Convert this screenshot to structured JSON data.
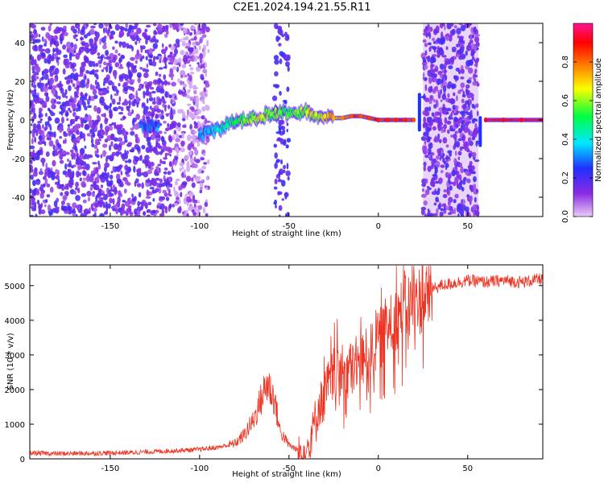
{
  "title": "C2E1.2024.194.21.55.R11",
  "colors": {
    "snr_line": "#ee3322",
    "frame": "#000000",
    "noise_purple": "#7a2ee0",
    "noise_light": "#e3cbf6"
  },
  "chart_data": [
    {
      "type": "heatmap",
      "xlabel": "Height of straight line (km)",
      "ylabel": "Frequency (Hz)",
      "xlim": [
        -195,
        92
      ],
      "ylim": [
        -50,
        50
      ],
      "xticks": [
        -150,
        -100,
        -50,
        0,
        50
      ],
      "yticks": [
        -40,
        -20,
        0,
        20,
        40
      ],
      "grid": false,
      "colorbar": {
        "label": "Normalized spectral amplitude",
        "range": [
          0,
          1
        ],
        "ticks": [
          0.0,
          0.2,
          0.4,
          0.6,
          0.8
        ],
        "colormap": [
          "#e8ccf8",
          "#8a2be2",
          "#2030ff",
          "#00e8ff",
          "#00ff40",
          "#f8ff00",
          "#ff8000",
          "#ff0000",
          "#ff1493"
        ]
      },
      "signal_track": [
        {
          "x": -133,
          "y": -3,
          "amp": 0.3
        },
        {
          "x": -123,
          "y": -3,
          "amp": 0.3
        },
        {
          "x": -100,
          "y": -8,
          "amp": 0.3
        },
        {
          "x": -95,
          "y": -6,
          "amp": 0.35
        },
        {
          "x": -90,
          "y": -5,
          "amp": 0.4
        },
        {
          "x": -85,
          "y": -3,
          "amp": 0.45
        },
        {
          "x": -80,
          "y": -1,
          "amp": 0.5
        },
        {
          "x": -75,
          "y": 0,
          "amp": 0.55
        },
        {
          "x": -70,
          "y": 1,
          "amp": 0.55
        },
        {
          "x": -65,
          "y": 2,
          "amp": 0.6
        },
        {
          "x": -60,
          "y": 3,
          "amp": 0.55
        },
        {
          "x": -55,
          "y": 4,
          "amp": 0.55
        },
        {
          "x": -50,
          "y": 3,
          "amp": 0.5
        },
        {
          "x": -45,
          "y": 4,
          "amp": 0.55
        },
        {
          "x": -40,
          "y": 4,
          "amp": 0.6
        },
        {
          "x": -35,
          "y": 3,
          "amp": 0.6
        },
        {
          "x": -30,
          "y": 2,
          "amp": 0.65
        },
        {
          "x": -25,
          "y": 1,
          "amp": 0.7
        },
        {
          "x": -20,
          "y": 1,
          "amp": 0.75
        },
        {
          "x": -15,
          "y": 2,
          "amp": 0.8
        },
        {
          "x": -10,
          "y": 2,
          "amp": 0.8
        },
        {
          "x": -5,
          "y": 1,
          "amp": 0.82
        },
        {
          "x": 0,
          "y": 0,
          "amp": 0.85
        },
        {
          "x": 5,
          "y": 0,
          "amp": 0.85
        },
        {
          "x": 10,
          "y": 0,
          "amp": 0.85
        },
        {
          "x": 15,
          "y": 0,
          "amp": 0.85
        },
        {
          "x": 20,
          "y": 0,
          "amp": 0.8
        },
        {
          "x": 60,
          "y": 0,
          "amp": 0.9
        },
        {
          "x": 70,
          "y": 0,
          "amp": 0.9
        },
        {
          "x": 80,
          "y": 0,
          "amp": 0.9
        },
        {
          "x": 92,
          "y": 0,
          "amp": 0.9
        }
      ]
    },
    {
      "type": "line",
      "xlabel": "Height of straight line (km)",
      "ylabel": "SNR (10 * v/v)",
      "xlim": [
        -195,
        92
      ],
      "ylim": [
        0,
        5600
      ],
      "xticks": [
        -150,
        -100,
        -50,
        0,
        50
      ],
      "yticks": [
        0,
        1000,
        2000,
        3000,
        4000,
        5000
      ],
      "grid": false,
      "series": [
        {
          "x": [
            -195,
            -180,
            -160,
            -140,
            -120,
            -100,
            -90,
            -80,
            -75,
            -70,
            -65,
            -62,
            -58,
            -55,
            -50,
            -45,
            -40,
            -38,
            -35,
            -30,
            -25,
            -20,
            -15,
            -10,
            -5,
            0,
            5,
            10,
            15,
            20,
            25,
            30,
            35,
            40,
            45,
            50,
            60,
            70,
            80,
            92
          ],
          "y": [
            170,
            150,
            160,
            180,
            220,
            270,
            330,
            450,
            700,
            1100,
            1800,
            2200,
            1700,
            800,
            400,
            250,
            300,
            600,
            1300,
            2000,
            2500,
            2600,
            2700,
            2900,
            3100,
            3500,
            3900,
            4200,
            4400,
            4600,
            4750,
            4900,
            5000,
            5050,
            5100,
            5150,
            5100,
            5150,
            5100,
            5200
          ]
        }
      ]
    }
  ]
}
